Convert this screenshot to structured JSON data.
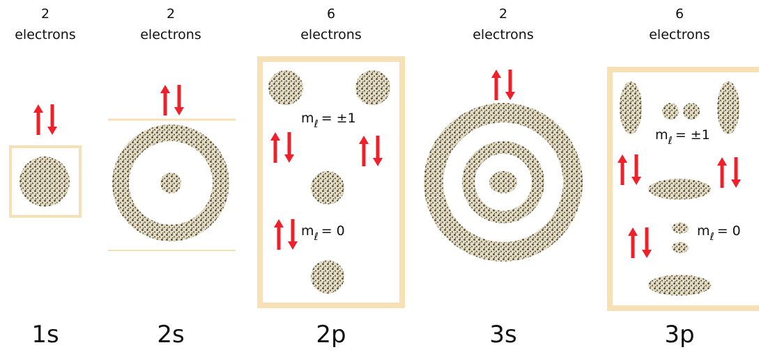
{
  "orbitals": [
    {
      "count": "2",
      "unit": "electrons",
      "label": "1s"
    },
    {
      "count": "2",
      "unit": "electrons",
      "label": "2s"
    },
    {
      "count": "6",
      "unit": "electrons",
      "label": "2p",
      "ml_labels": [
        {
          "symbol": "m",
          "subscript": "ℓ",
          "value": "= ±1"
        },
        {
          "symbol": "m",
          "subscript": "ℓ",
          "value": "= 0"
        }
      ]
    },
    {
      "count": "2",
      "unit": "electrons",
      "label": "3s"
    },
    {
      "count": "6",
      "unit": "electrons",
      "label": "3p",
      "ml_labels": [
        {
          "symbol": "m",
          "subscript": "ℓ",
          "value": "= ±1"
        },
        {
          "symbol": "m",
          "subscript": "ℓ",
          "value": "= 0"
        }
      ]
    }
  ]
}
